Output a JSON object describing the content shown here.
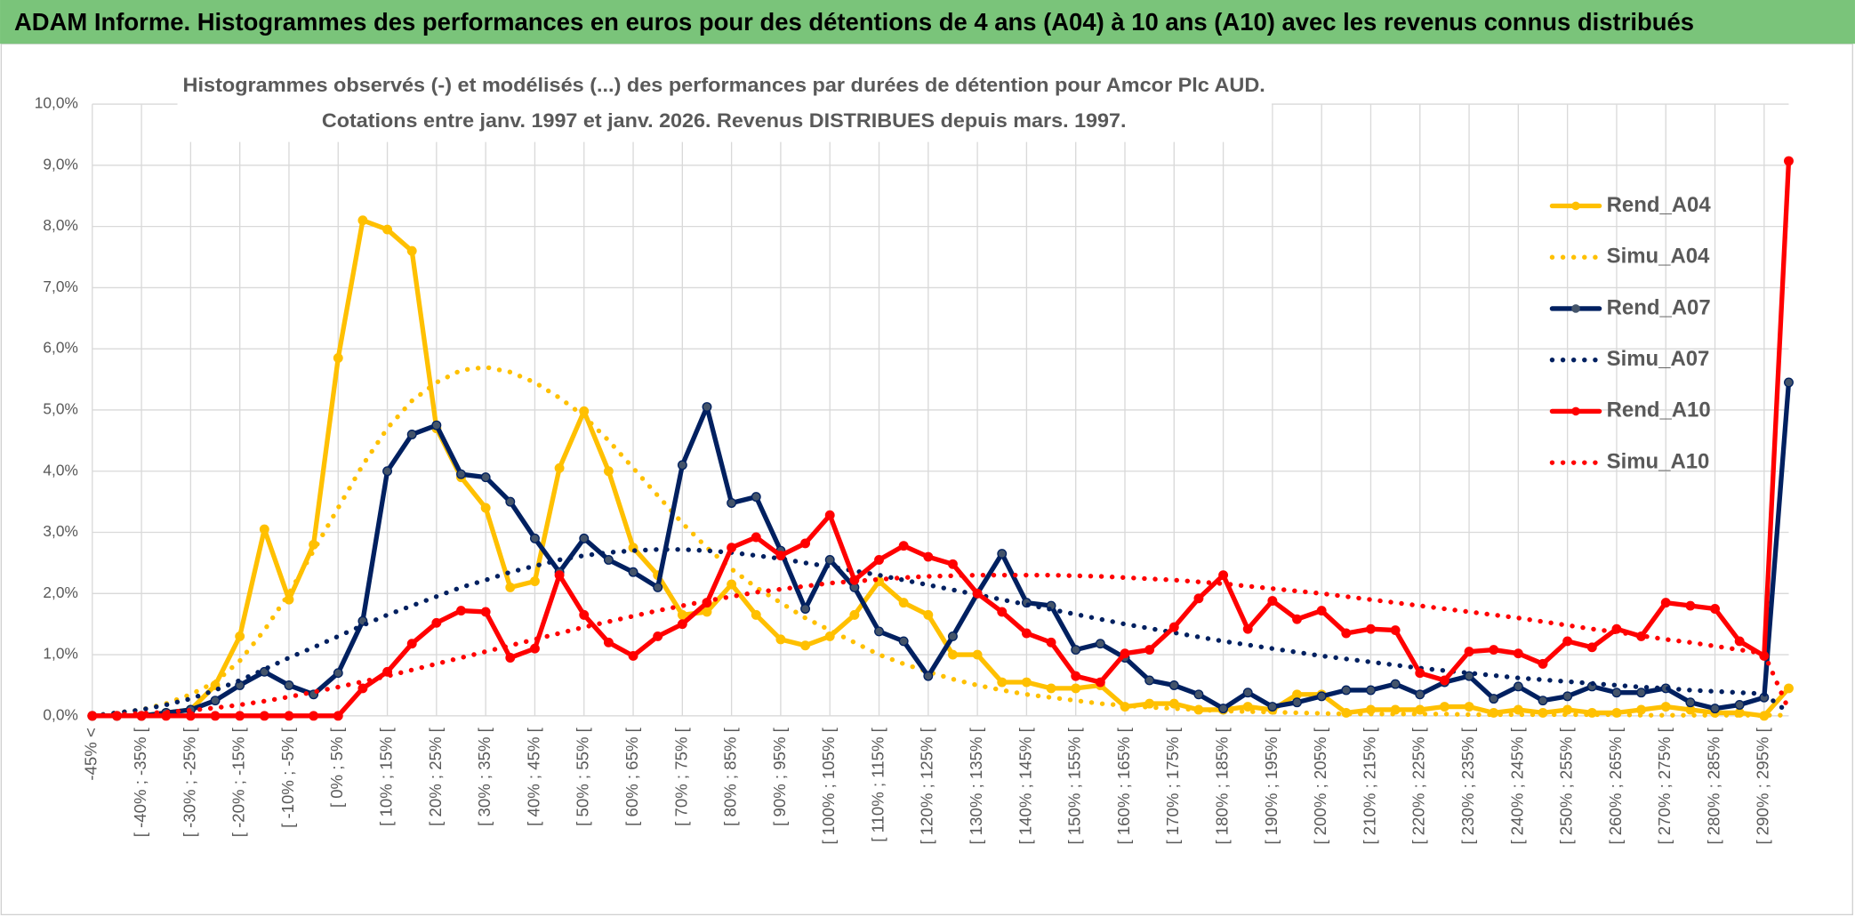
{
  "chart_data": {
    "type": "line",
    "header": "ADAM Informe. Histogrammes des performances en euros pour des détentions de 4 ans (A04) à 10 ans (A10) avec les revenus connus distribués",
    "title": "Histogrammes observés (-) et modélisés (...) des performances par durées de détention pour Amcor Plc AUD.",
    "subtitle": "Cotations entre janv. 1997 et janv. 2026. Revenus DISTRIBUES depuis mars. 1997.",
    "categories": [
      "-45% <",
      null,
      "[ -40% ; -35% [",
      null,
      "[ -30% ; -25% [",
      null,
      "[ -20% ; -15% [",
      null,
      "[ -10% ; -5% [",
      null,
      "[ 0% ; 5% [",
      null,
      "[ 10% ; 15% [",
      null,
      "[ 20% ; 25% [",
      null,
      "[ 30% ; 35% [",
      null,
      "[ 40% ; 45% [",
      null,
      "[ 50% ; 55% [",
      null,
      "[ 60% ; 65% [",
      null,
      "[ 70% ; 75% [",
      null,
      "[ 80% ; 85% [",
      null,
      "[ 90% ; 95% [",
      null,
      "[ 100% ; 105% [",
      null,
      "[ 110% ; 115% [",
      null,
      "[ 120% ; 125% [",
      null,
      "[ 130% ; 135% [",
      null,
      "[ 140% ; 145% [",
      null,
      "[ 150% ; 155% [",
      null,
      "[ 160% ; 165% [",
      null,
      "[ 170% ; 175% [",
      null,
      "[ 180% ; 185% [",
      null,
      "[ 190% ; 195% [",
      null,
      "[ 200% ; 205% [",
      null,
      "[ 210% ; 215% [",
      null,
      "[ 220% ; 225% [",
      null,
      "[ 230% ; 235% [",
      null,
      "[ 240% ; 245% [",
      null,
      "[ 250% ; 255% [",
      null,
      "[ 260% ; 265% [",
      null,
      "[ 270% ; 275% [",
      null,
      "[ 280% ; 285% [",
      null,
      "[ 290% ; 295% [",
      null
    ],
    "series": [
      {
        "name": "Rend_A04",
        "color": "#ffc000",
        "style": "solid",
        "markers": true,
        "values": [
          0,
          0,
          0,
          0.05,
          0.1,
          0.5,
          1.3,
          3.05,
          1.9,
          2.8,
          5.85,
          8.1,
          7.95,
          7.6,
          4.7,
          3.9,
          3.4,
          2.1,
          2.2,
          4.05,
          4.98,
          4.0,
          2.75,
          2.3,
          1.65,
          1.7,
          2.15,
          1.65,
          1.25,
          1.15,
          1.3,
          1.65,
          2.2,
          1.85,
          1.65,
          1.0,
          1.0,
          0.55,
          0.55,
          0.45,
          0.45,
          0.5,
          0.15,
          0.2,
          0.2,
          0.1,
          0.1,
          0.15,
          0.1,
          0.35,
          0.35,
          0.05,
          0.1,
          0.1,
          0.1,
          0.15,
          0.15,
          0.05,
          0.1,
          0.05,
          0.1,
          0.05,
          0.05,
          0.1,
          0.15,
          0.1,
          0.05,
          0.05,
          0.0,
          0.45
        ]
      },
      {
        "name": "Simu_A04",
        "color": "#ffc000",
        "style": "dotted",
        "markers": false,
        "values": [
          0,
          0.05,
          0.1,
          0.2,
          0.35,
          0.55,
          0.9,
          1.4,
          2.0,
          2.7,
          3.4,
          4.1,
          4.7,
          5.15,
          5.45,
          5.65,
          5.7,
          5.62,
          5.45,
          5.2,
          4.9,
          4.5,
          4.05,
          3.6,
          3.15,
          2.75,
          2.4,
          2.1,
          1.85,
          1.6,
          1.4,
          1.2,
          1.0,
          0.85,
          0.72,
          0.6,
          0.5,
          0.42,
          0.35,
          0.3,
          0.25,
          0.2,
          0.17,
          0.14,
          0.12,
          0.1,
          0.08,
          0.07,
          0.06,
          0.05,
          0.04,
          0.03,
          0.03,
          0.03,
          0.03,
          0.03,
          0.02,
          0.02,
          0.02,
          0.02,
          0.02,
          0.02,
          0.02,
          0.01,
          0.01,
          0.01,
          0.01,
          0.01,
          0.01,
          0.01
        ]
      },
      {
        "name": "Rend_A07",
        "color": "#002060",
        "style": "solid",
        "markers": true,
        "values": [
          0,
          0,
          0,
          0.05,
          0.1,
          0.25,
          0.5,
          0.72,
          0.5,
          0.35,
          0.7,
          1.55,
          4.0,
          4.6,
          4.75,
          3.95,
          3.9,
          3.5,
          2.9,
          2.35,
          2.9,
          2.55,
          2.35,
          2.1,
          4.1,
          5.05,
          3.48,
          3.58,
          2.7,
          1.75,
          2.55,
          2.1,
          1.38,
          1.22,
          0.65,
          1.3,
          2.0,
          2.65,
          1.85,
          1.8,
          1.08,
          1.18,
          0.95,
          0.58,
          0.5,
          0.35,
          0.12,
          0.38,
          0.15,
          0.22,
          0.32,
          0.42,
          0.42,
          0.52,
          0.35,
          0.55,
          0.65,
          0.28,
          0.48,
          0.25,
          0.32,
          0.48,
          0.38,
          0.38,
          0.45,
          0.22,
          0.12,
          0.18,
          0.3,
          5.45
        ]
      },
      {
        "name": "Simu_A07",
        "color": "#002060",
        "style": "dotted",
        "markers": false,
        "values": [
          0,
          0.05,
          0.1,
          0.18,
          0.28,
          0.42,
          0.58,
          0.76,
          0.95,
          1.12,
          1.3,
          1.48,
          1.65,
          1.8,
          1.95,
          2.1,
          2.22,
          2.35,
          2.45,
          2.55,
          2.62,
          2.67,
          2.7,
          2.72,
          2.72,
          2.7,
          2.67,
          2.62,
          2.57,
          2.5,
          2.44,
          2.37,
          2.3,
          2.22,
          2.14,
          2.06,
          1.98,
          1.9,
          1.82,
          1.74,
          1.66,
          1.58,
          1.5,
          1.43,
          1.36,
          1.29,
          1.22,
          1.16,
          1.1,
          1.04,
          0.98,
          0.93,
          0.88,
          0.83,
          0.78,
          0.74,
          0.7,
          0.66,
          0.62,
          0.59,
          0.56,
          0.53,
          0.5,
          0.47,
          0.45,
          0.42,
          0.4,
          0.38,
          0.36,
          0.05
        ]
      },
      {
        "name": "Rend_A10",
        "color": "#ff0000",
        "style": "solid",
        "markers": true,
        "values": [
          0,
          0,
          0,
          0,
          0,
          0,
          0,
          0,
          0,
          0,
          0,
          0.45,
          0.72,
          1.18,
          1.52,
          1.72,
          1.7,
          0.95,
          1.1,
          2.3,
          1.65,
          1.2,
          0.98,
          1.3,
          1.5,
          1.85,
          2.75,
          2.92,
          2.62,
          2.82,
          3.28,
          2.22,
          2.55,
          2.78,
          2.6,
          2.48,
          2.0,
          1.7,
          1.35,
          1.2,
          0.65,
          0.55,
          1.02,
          1.08,
          1.45,
          1.92,
          2.3,
          1.42,
          1.88,
          1.58,
          1.72,
          1.35,
          1.42,
          1.4,
          0.7,
          0.58,
          1.05,
          1.08,
          1.02,
          0.85,
          1.22,
          1.12,
          1.42,
          1.3,
          1.85,
          1.8,
          1.75,
          1.22,
          0.98,
          9.07
        ]
      },
      {
        "name": "Simu_A10",
        "color": "#ff0000",
        "style": "dotted",
        "markers": false,
        "values": [
          0,
          0.02,
          0.04,
          0.06,
          0.09,
          0.13,
          0.18,
          0.24,
          0.31,
          0.39,
          0.47,
          0.56,
          0.65,
          0.75,
          0.85,
          0.95,
          1.05,
          1.15,
          1.25,
          1.35,
          1.45,
          1.54,
          1.63,
          1.72,
          1.8,
          1.88,
          1.95,
          2.02,
          2.07,
          2.12,
          2.17,
          2.2,
          2.23,
          2.26,
          2.28,
          2.29,
          2.3,
          2.3,
          2.3,
          2.3,
          2.29,
          2.28,
          2.26,
          2.24,
          2.22,
          2.19,
          2.16,
          2.12,
          2.08,
          2.04,
          2.0,
          1.95,
          1.9,
          1.85,
          1.8,
          1.75,
          1.7,
          1.65,
          1.6,
          1.54,
          1.48,
          1.42,
          1.37,
          1.31,
          1.25,
          1.2,
          1.14,
          1.08,
          1.02,
          0.1
        ]
      }
    ],
    "ylim": [
      0,
      10
    ],
    "yticks": [
      {
        "value": 0,
        "label": "0,0%"
      },
      {
        "value": 1,
        "label": "1,0%"
      },
      {
        "value": 2,
        "label": "2,0%"
      },
      {
        "value": 3,
        "label": "3,0%"
      },
      {
        "value": 4,
        "label": "4,0%"
      },
      {
        "value": 5,
        "label": "5,0%"
      },
      {
        "value": 6,
        "label": "6,0%"
      },
      {
        "value": 7,
        "label": "7,0%"
      },
      {
        "value": 8,
        "label": "8,0%"
      },
      {
        "value": 9,
        "label": "9,0%"
      },
      {
        "value": 10,
        "label": "10,0%"
      }
    ],
    "grid": true,
    "legend": "right"
  }
}
